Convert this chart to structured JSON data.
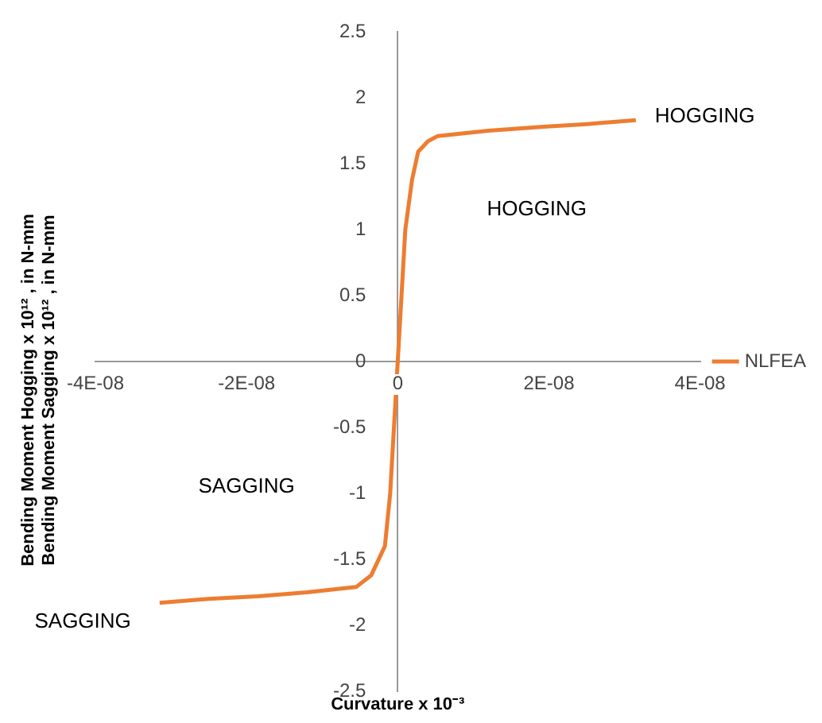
{
  "chart_data": {
    "type": "line",
    "ylabel": "Bending Moment Hogging x 10¹² , in N-mm\nBending Moment Sagging x 10¹² , in N-mm",
    "xlabel": "Curvature x 10⁻³",
    "xlim": [
      -4e-08,
      4e-08
    ],
    "xticks": [
      {
        "value": -4e-08,
        "label": "-4E-08"
      },
      {
        "value": -2e-08,
        "label": "-2E-08"
      },
      0,
      {
        "value": 2e-08,
        "label": "2E-08"
      },
      {
        "value": 4e-08,
        "label": "4E-08"
      }
    ],
    "ylim": [
      -2.5,
      2.5
    ],
    "yticks": [
      -2.5,
      -2,
      -1.5,
      -1,
      -0.5,
      0,
      0.5,
      1,
      1.5,
      2,
      2.5
    ],
    "legend": "right",
    "marker": "none",
    "series": [
      {
        "name": "NLFEA",
        "color": "#ed7d31",
        "x": [
          -3.15e-08,
          -2.5e-08,
          -1.85e-08,
          -1.2e-08,
          -5.5e-09,
          -3.5e-09,
          -1.7e-09,
          -1e-09,
          0,
          1e-09,
          1.9e-09,
          2.7e-09,
          4e-09,
          5.3e-09,
          1.2e-08,
          1.93e-08,
          2.5e-08,
          3.15e-08
        ],
        "values": [
          -1.83,
          -1.8,
          -1.78,
          -1.75,
          -1.71,
          -1.62,
          -1.4,
          -1,
          0,
          1,
          1.38,
          1.59,
          1.67,
          1.71,
          1.75,
          1.78,
          1.8,
          1.83
        ]
      }
    ],
    "annotations": [
      {
        "text": "HOGGING",
        "x": 3.15e-08,
        "y": 1.83
      },
      "HOGGING",
      "SAGGING",
      {
        "text": "SAGGING",
        "x": -3.15e-08,
        "y": -1.83
      }
    ]
  }
}
